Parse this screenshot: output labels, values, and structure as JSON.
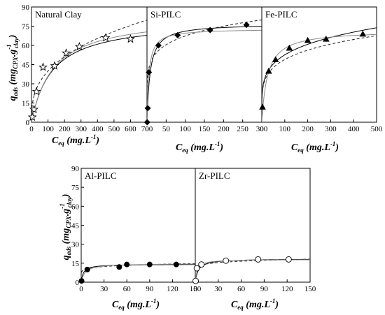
{
  "figure": {
    "top_ylabel": "q_ads (mg_CPX.g^-1_clay)",
    "bottom_ylabel": "q_ads (mg_CPX.g^-1_clay)",
    "xlabel": "C_eq (mg.L^-1)"
  },
  "chart_data": [
    {
      "type": "scatter",
      "title": "Natural Clay",
      "xlabel": "C_eq (mg.L^-1)",
      "ylabel": "q_ads (mg_CPX.g^-1_clay)",
      "xlim": [
        0,
        700
      ],
      "ylim": [
        0,
        90
      ],
      "x_ticks": [
        0,
        100,
        200,
        300,
        400,
        500,
        600,
        700
      ],
      "y_ticks": [
        0,
        15,
        30,
        45,
        60,
        75,
        90
      ],
      "marker": "open-star",
      "points": [
        [
          5,
          4
        ],
        [
          15,
          10
        ],
        [
          30,
          24
        ],
        [
          70,
          43
        ],
        [
          140,
          44
        ],
        [
          210,
          54
        ],
        [
          290,
          59
        ],
        [
          450,
          66
        ],
        [
          600,
          65
        ]
      ],
      "fits": [
        {
          "style": "solid-dark",
          "model": "langmuir",
          "qmax": 80,
          "k": 0.008
        },
        {
          "style": "dashed",
          "model": "freundlich",
          "k": 7.8,
          "n": 0.355
        },
        {
          "style": "solid-gray",
          "model": "langmuir",
          "qmax": 84,
          "k": 0.0075
        }
      ],
      "grid": false
    },
    {
      "type": "scatter",
      "title": "Si-PILC",
      "xlabel": "C_eq (mg.L^-1)",
      "ylim": [
        0,
        90
      ],
      "xlim": [
        0,
        300
      ],
      "x_ticks": [
        0,
        50,
        100,
        150,
        200,
        250,
        300
      ],
      "marker": "filled-diamond",
      "points": [
        [
          0.5,
          0
        ],
        [
          2,
          11
        ],
        [
          5,
          39
        ],
        [
          30,
          60
        ],
        [
          80,
          68
        ],
        [
          165,
          72
        ],
        [
          260,
          76
        ]
      ],
      "fits": [
        {
          "style": "solid-dark",
          "model": "langmuir",
          "qmax": 77,
          "k": 0.12
        },
        {
          "style": "dashed",
          "model": "freundlich",
          "k": 33,
          "n": 0.155
        },
        {
          "style": "solid-gray",
          "model": "langmuir",
          "qmax": 73,
          "k": 0.2
        }
      ],
      "grid": false
    },
    {
      "type": "scatter",
      "title": "Fe-PILC",
      "xlabel": "C_eq (mg.L^-1)",
      "ylim": [
        0,
        90
      ],
      "xlim": [
        0,
        500
      ],
      "x_ticks": [
        0,
        100,
        200,
        300,
        400,
        500
      ],
      "marker": "filled-triangle",
      "points": [
        [
          3,
          12
        ],
        [
          30,
          40
        ],
        [
          60,
          49
        ],
        [
          120,
          58
        ],
        [
          200,
          64
        ],
        [
          280,
          65
        ],
        [
          440,
          69
        ]
      ],
      "fits": [
        {
          "style": "solid-dark",
          "model": "freundlich",
          "k": 20,
          "n": 0.21
        },
        {
          "style": "dashed",
          "model": "freundlich",
          "k": 19.5,
          "n": 0.2
        },
        {
          "style": "solid-gray",
          "model": "langmuir",
          "qmax": 72,
          "k": 0.04
        }
      ],
      "grid": false
    },
    {
      "type": "scatter",
      "title": "Al-PILC",
      "xlabel": "C_eq (mg.L^-1)",
      "ylabel": "q_ads (mg_CPX.g^-1_clay)",
      "xlim": [
        0,
        150
      ],
      "ylim": [
        0,
        90
      ],
      "x_ticks": [
        0,
        30,
        60,
        90,
        120,
        150
      ],
      "y_ticks": [
        0,
        15,
        30,
        45,
        60,
        75,
        90
      ],
      "marker": "filled-circle",
      "points": [
        [
          0.5,
          1
        ],
        [
          8,
          10
        ],
        [
          50,
          12
        ],
        [
          60,
          14
        ],
        [
          90,
          14
        ],
        [
          125,
          14
        ]
      ],
      "fits": [
        {
          "style": "solid-dark",
          "model": "langmuir",
          "qmax": 14.2,
          "k": 0.35
        },
        {
          "style": "dashed",
          "model": "freundlich",
          "k": 8.5,
          "n": 0.11
        },
        {
          "style": "solid-gray",
          "model": "langmuir",
          "qmax": 14.8,
          "k": 0.2
        }
      ],
      "grid": false
    },
    {
      "type": "scatter",
      "title": "Zr-PILC",
      "xlabel": "C_eq (mg.L^-1)",
      "xlim": [
        0,
        150
      ],
      "ylim": [
        0,
        90
      ],
      "x_ticks": [
        0,
        30,
        60,
        90,
        120,
        150
      ],
      "marker": "open-circle",
      "points": [
        [
          0.5,
          1
        ],
        [
          2,
          11
        ],
        [
          8,
          14
        ],
        [
          40,
          17
        ],
        [
          82,
          18
        ],
        [
          122,
          18
        ]
      ],
      "fits": [
        {
          "style": "solid-dark",
          "model": "langmuir",
          "qmax": 18.5,
          "k": 0.25
        },
        {
          "style": "dashed",
          "model": "freundlich",
          "k": 11,
          "n": 0.1
        },
        {
          "style": "solid-gray",
          "model": "langmuir",
          "qmax": 18,
          "k": 0.4
        }
      ],
      "grid": false
    }
  ]
}
